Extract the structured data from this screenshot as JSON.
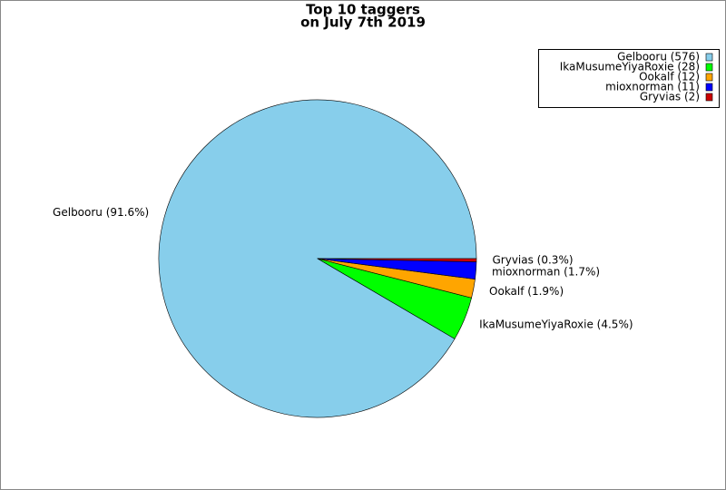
{
  "chart_data": {
    "type": "pie",
    "title": "Top 10 taggers",
    "subtitle": "on July 7th 2019",
    "series": [
      {
        "name": "Gelbooru (576)",
        "color": "#87ceeb",
        "values": [
          576
        ],
        "value_labels": [
          "Gelbooru (91.6%)"
        ]
      },
      {
        "name": "IkaMusumeYiyaRoxie (28)",
        "color": "#00ff00",
        "values": [
          28
        ],
        "value_labels": [
          "IkaMusumeYiyaRoxie (4.5%)"
        ]
      },
      {
        "name": "Ookalf (12)",
        "color": "#ffa500",
        "values": [
          12
        ],
        "value_labels": [
          "Ookalf (1.9%)"
        ]
      },
      {
        "name": "mioxnorman (11)",
        "color": "#0000ff",
        "values": [
          11
        ],
        "value_labels": [
          "mioxnorman (1.7%)"
        ]
      },
      {
        "name": "Gryvias (2)",
        "color": "#cc0000",
        "values": [
          2
        ],
        "value_labels": [
          "Gryvias (0.3%)"
        ]
      }
    ],
    "legend": "upper right"
  }
}
